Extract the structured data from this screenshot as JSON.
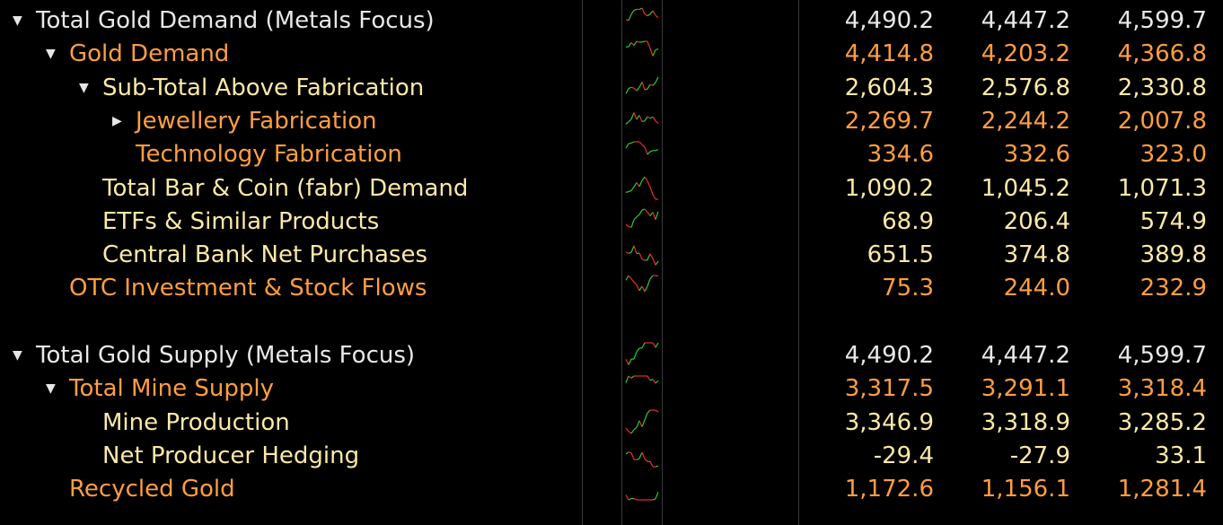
{
  "table": {
    "rows": [
      {
        "label": "Total Gold Demand (Metals Focus)",
        "level": 0,
        "expanded": true,
        "color": "#e8e8e8",
        "values": [
          "4,490.2",
          "4,447.2",
          "4,599.7"
        ]
      },
      {
        "label": "Gold Demand",
        "level": 1,
        "expanded": true,
        "color": "#ff9e40",
        "values": [
          "4,414.8",
          "4,203.2",
          "4,366.8"
        ]
      },
      {
        "label": "Sub-Total Above Fabrication",
        "level": 2,
        "expanded": true,
        "color": "#fbe9a6",
        "values": [
          "2,604.3",
          "2,576.8",
          "2,330.8"
        ]
      },
      {
        "label": "Jewellery Fabrication",
        "level": 3,
        "expanded": false,
        "color": "#ff9e40",
        "values": [
          "2,269.7",
          "2,244.2",
          "2,007.8"
        ]
      },
      {
        "label": "Technology Fabrication",
        "level": 3,
        "expanded": null,
        "color": "#ff9e40",
        "values": [
          "334.6",
          "332.6",
          "323.0"
        ]
      },
      {
        "label": "Total Bar & Coin (fabr) Demand",
        "level": 2,
        "expanded": null,
        "color": "#fbe9a6",
        "values": [
          "1,090.2",
          "1,045.2",
          "1,071.3"
        ]
      },
      {
        "label": "ETFs & Similar Products",
        "level": 2,
        "expanded": null,
        "color": "#fbe9a6",
        "values": [
          "68.9",
          "206.4",
          "574.9"
        ]
      },
      {
        "label": "Central Bank Net Purchases",
        "level": 2,
        "expanded": null,
        "color": "#fbe9a6",
        "values": [
          "651.5",
          "374.8",
          "389.8"
        ]
      },
      {
        "label": "OTC Investment & Stock Flows",
        "level": 1,
        "expanded": null,
        "color": "#ff9e40",
        "values": [
          "75.3",
          "244.0",
          "232.9"
        ]
      },
      {
        "label": "Total Gold Supply (Metals Focus)",
        "level": 0,
        "expanded": true,
        "color": "#e8e8e8",
        "values": [
          "4,490.2",
          "4,447.2",
          "4,599.7"
        ]
      },
      {
        "label": "Total Mine Supply",
        "level": 1,
        "expanded": true,
        "color": "#ff9e40",
        "values": [
          "3,317.5",
          "3,291.1",
          "3,318.4"
        ]
      },
      {
        "label": "Mine Production",
        "level": 2,
        "expanded": null,
        "color": "#fbe9a6",
        "values": [
          "3,346.9",
          "3,318.9",
          "3,285.2"
        ]
      },
      {
        "label": "Net Producer Hedging",
        "level": 2,
        "expanded": null,
        "color": "#fbe9a6",
        "values": [
          "-29.4",
          "-27.9",
          "33.1"
        ]
      },
      {
        "label": "Recycled Gold",
        "level": 1,
        "expanded": null,
        "color": "#ff9e40",
        "values": [
          "1,172.6",
          "1,156.1",
          "1,281.4"
        ]
      }
    ]
  }
}
